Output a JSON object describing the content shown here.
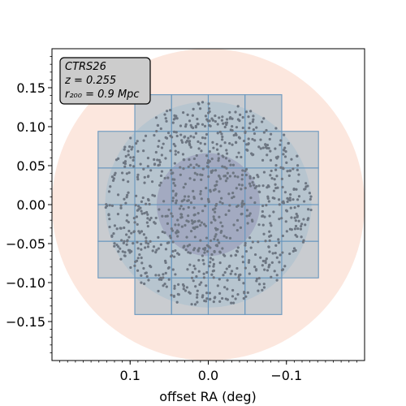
{
  "chart_data": {
    "type": "scatter",
    "title": "",
    "xlabel": "offset RA (deg)",
    "ylabel": "",
    "xlim": [
      0.2,
      -0.2
    ],
    "ylim": [
      -0.2,
      0.2
    ],
    "x_inverted": true,
    "grid": false,
    "xticks": [
      0.1,
      0.0,
      -0.1
    ],
    "xtick_labels": [
      "0.1",
      "0.0",
      "−0.1"
    ],
    "yticks": [
      0.15,
      0.1,
      0.05,
      0.0,
      -0.05,
      -0.1,
      -0.15
    ],
    "ytick_labels": [
      "0.15",
      "0.10",
      "0.05",
      "0.00",
      "−0.05",
      "−0.10",
      "−0.15"
    ],
    "legend": {
      "placement": "top-left",
      "lines": [
        "CTRS26",
        "z = 0.255",
        "r₂₀₀ = 0.9 Mpc"
      ]
    },
    "regions": [
      {
        "shape": "circle",
        "center": [
          0,
          0
        ],
        "radius": 0.2,
        "color": "#fbe3d8"
      },
      {
        "shape": "circle",
        "center": [
          0,
          0
        ],
        "radius": 0.132,
        "color": "#cfd3db"
      },
      {
        "shape": "circle",
        "center": [
          0,
          0
        ],
        "radius": 0.066,
        "color": "#9d8cb5"
      }
    ],
    "fields": {
      "color": "#9fb7c4",
      "edge": "#6a98bf",
      "cell_size": 0.047,
      "columns": [
        {
          "x_min": 0.094,
          "x_max": 0.141,
          "y_min": -0.094,
          "y_max": 0.094
        },
        {
          "x_min": 0.047,
          "x_max": 0.094,
          "y_min": -0.141,
          "y_max": 0.141
        },
        {
          "x_min": 0.0,
          "x_max": 0.047,
          "y_min": -0.141,
          "y_max": 0.141
        },
        {
          "x_min": -0.047,
          "x_max": 0.0,
          "y_min": -0.141,
          "y_max": 0.141
        },
        {
          "x_min": -0.094,
          "x_max": -0.047,
          "y_min": -0.141,
          "y_max": 0.141
        },
        {
          "x_min": -0.141,
          "x_max": -0.094,
          "y_min": -0.094,
          "y_max": 0.094
        }
      ]
    },
    "points": {
      "color": "#6d7682",
      "count": 1000,
      "r_max": 0.132,
      "distribution": "uniform within inner circle, restricted to field footprint"
    }
  }
}
